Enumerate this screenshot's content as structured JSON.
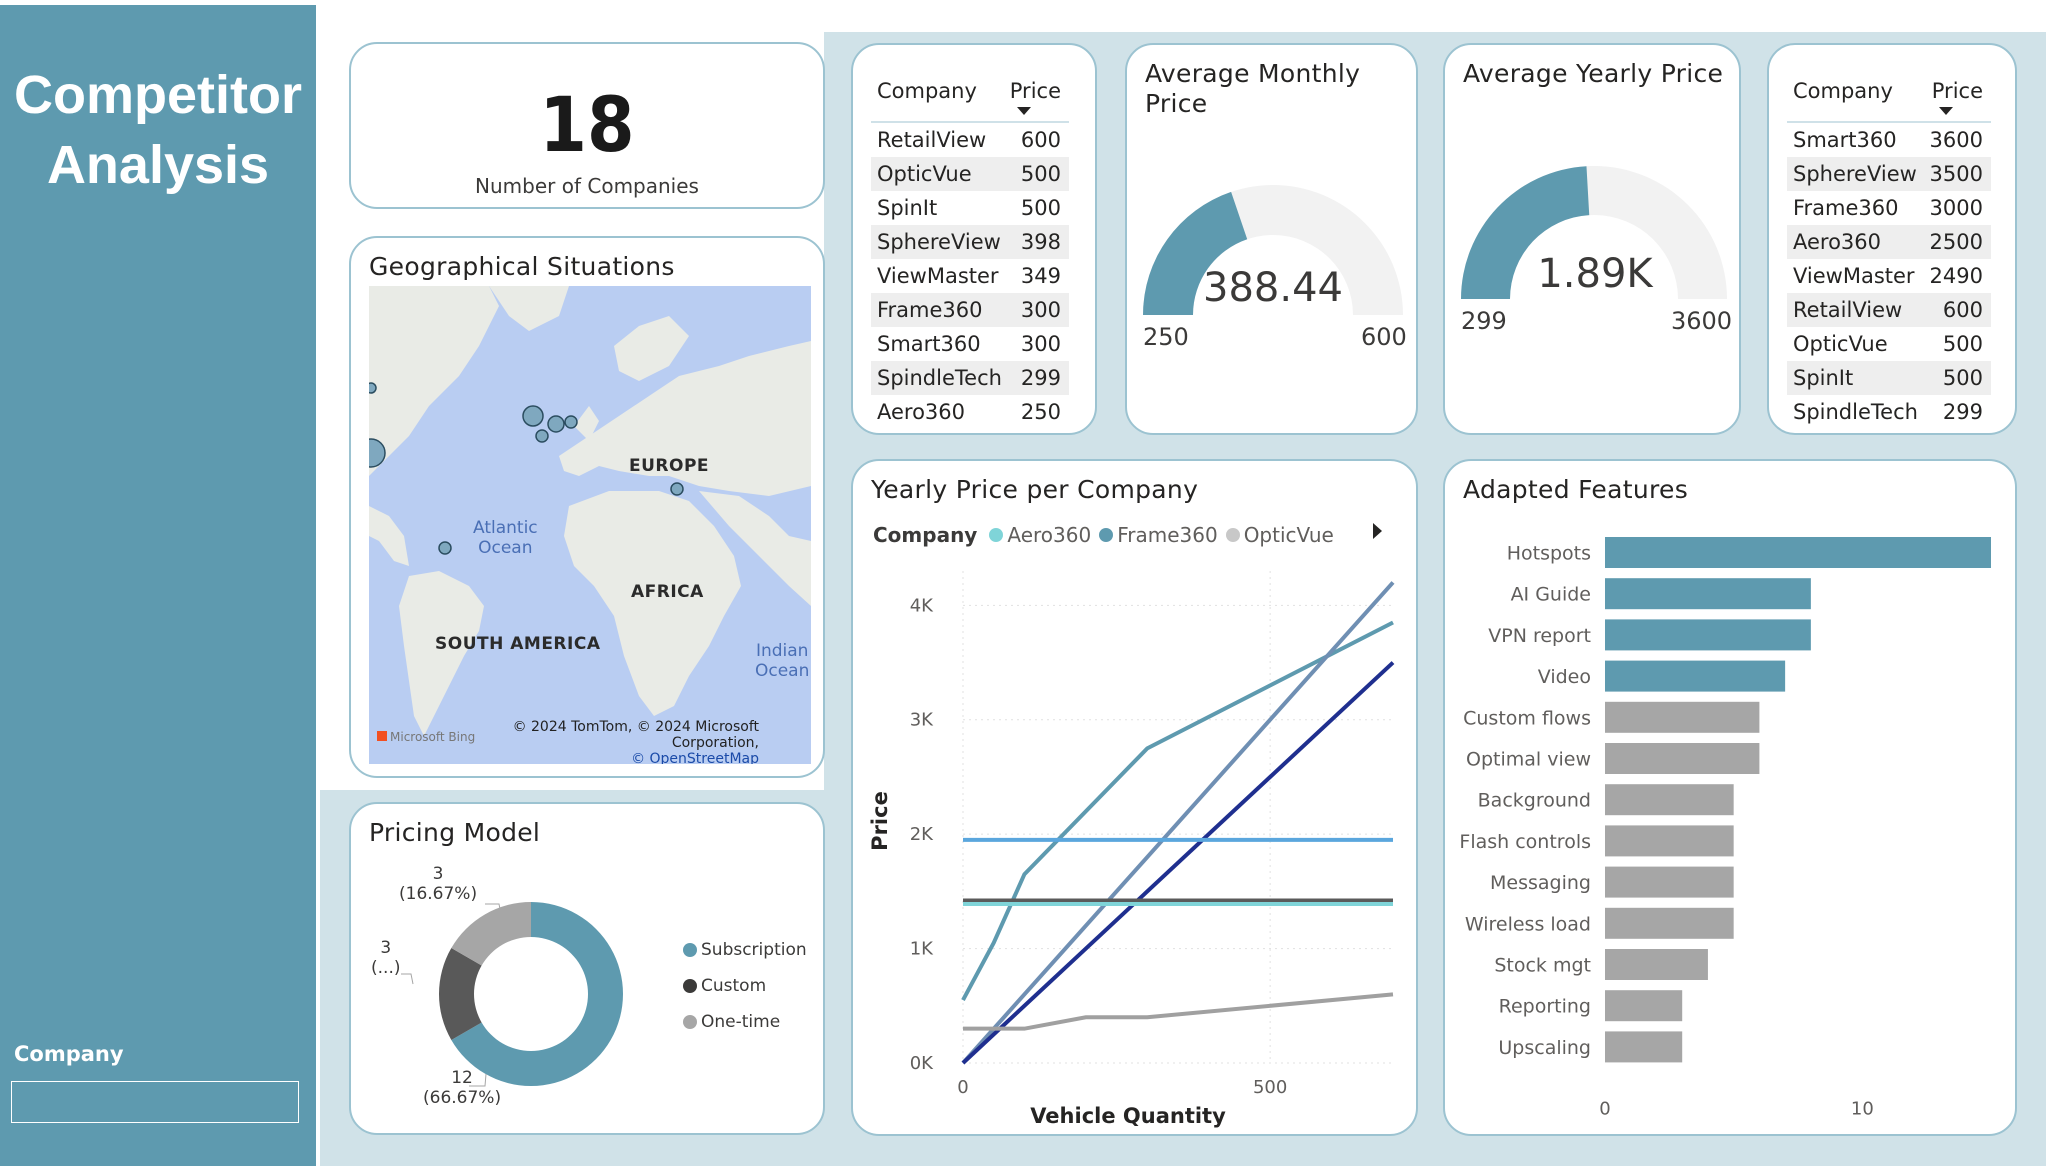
{
  "sidebar": {
    "title_line1": "Competitor",
    "title_line2": "Analysis",
    "slicer_label": "Company",
    "slicer_value": ""
  },
  "colors": {
    "teal": "#5e9aaf",
    "light_panel": "#d0e2e8",
    "gray_bar": "#a6a6a6",
    "gauge_track": "#f2f2f2"
  },
  "kpi": {
    "value": "18",
    "label": "Number of Companies"
  },
  "monthly_table": {
    "col_company": "Company",
    "col_price": "Price",
    "rows": [
      [
        "RetailView",
        "600"
      ],
      [
        "OpticVue",
        "500"
      ],
      [
        "SpinIt",
        "500"
      ],
      [
        "SphereView",
        "398"
      ],
      [
        "ViewMaster",
        "349"
      ],
      [
        "Frame360",
        "300"
      ],
      [
        "Smart360",
        "300"
      ],
      [
        "SpindleTech",
        "299"
      ],
      [
        "Aero360",
        "250"
      ]
    ]
  },
  "yearly_table": {
    "col_company": "Company",
    "col_price": "Price",
    "rows": [
      [
        "Smart360",
        "3600"
      ],
      [
        "SphereView",
        "3500"
      ],
      [
        "Frame360",
        "3000"
      ],
      [
        "Aero360",
        "2500"
      ],
      [
        "ViewMaster",
        "2490"
      ],
      [
        "RetailView",
        "600"
      ],
      [
        "OpticVue",
        "500"
      ],
      [
        "SpinIt",
        "500"
      ],
      [
        "SpindleTech",
        "299"
      ]
    ]
  },
  "gauge_monthly": {
    "title_line1": "Average Monthly",
    "title_line2": "Price",
    "value": 388.44,
    "value_label": "388.44",
    "min": 250,
    "max": 600,
    "min_label": "250",
    "max_label": "600"
  },
  "gauge_yearly": {
    "title": "Average Yearly Price",
    "value": 1890,
    "value_label": "1.89K",
    "min": 299,
    "max": 3600,
    "min_label": "299",
    "max_label": "3600"
  },
  "map": {
    "title": "Geographical Situations",
    "labels": {
      "europe": "EUROPE",
      "africa": "AFRICA",
      "south_america": "SOUTH AMERICA"
    },
    "ocean_atlantic_1": "Atlantic",
    "ocean_atlantic_2": "Ocean",
    "ocean_indian_1": "Indian",
    "ocean_indian_2": "Ocean",
    "copyright": "© 2024 TomTom, © 2024 Microsoft Corporation,",
    "osm": "© OpenStreetMap",
    "bing": "Microsoft Bing"
  },
  "pricing_model": {
    "title": "Pricing Model",
    "legend": [
      "Subscription",
      "Custom",
      "One-time"
    ],
    "label_onetime_count": "3",
    "label_onetime_pct": "(16.67%)",
    "label_custom_count": "3",
    "label_custom_pct": "(...)",
    "label_sub_count": "12",
    "label_sub_pct": "(66.67%)"
  },
  "line_chart": {
    "title": "Yearly Price per Company",
    "legend_title": "Company",
    "legend": [
      "Aero360",
      "Frame360",
      "OpticVue"
    ],
    "xlabel": "Vehicle Quantity",
    "ylabel": "Price"
  },
  "chart_data": [
    {
      "type": "pie",
      "title": "Pricing Model",
      "categories": [
        "Subscription",
        "Custom",
        "One-time"
      ],
      "values": [
        12,
        3,
        3
      ],
      "percentages": [
        "66.67%",
        "16.67%",
        "16.67%"
      ],
      "colors": [
        "#5e9aaf",
        "#595959",
        "#a6a6a6"
      ]
    },
    {
      "type": "line",
      "title": "Yearly Price per Company",
      "xlabel": "Vehicle Quantity",
      "ylabel": "Price",
      "xlim": [
        0,
        700
      ],
      "ylim": [
        0,
        4300
      ],
      "x_ticks": [
        "0",
        "500"
      ],
      "y_ticks": [
        "0K",
        "1K",
        "2K",
        "3K",
        "4K"
      ],
      "series": [
        {
          "color": "#5e9aaf",
          "x": [
            0,
            50,
            100,
            300,
            700
          ],
          "y": [
            550,
            1050,
            1650,
            2750,
            3850
          ]
        },
        {
          "color": "#6f8fb3",
          "x": [
            0,
            700
          ],
          "y": [
            0,
            4200
          ]
        },
        {
          "color": "#1f2f8f",
          "x": [
            0,
            700
          ],
          "y": [
            0,
            3500
          ]
        },
        {
          "color": "#5aa6dd",
          "x": [
            0,
            700
          ],
          "y": [
            1950,
            1950
          ]
        },
        {
          "color": "#5a5a5a",
          "x": [
            0,
            700
          ],
          "y": [
            1420,
            1420
          ]
        },
        {
          "color": "#7fd4d8",
          "x": [
            0,
            700
          ],
          "y": [
            1390,
            1390
          ]
        },
        {
          "color": "#a0a0a0",
          "x": [
            0,
            100,
            200,
            300,
            700
          ],
          "y": [
            300,
            300,
            400,
            400,
            600
          ]
        }
      ]
    },
    {
      "type": "bar",
      "title": "Adapted Features",
      "orientation": "horizontal",
      "categories": [
        "Hotspots",
        "AI Guide",
        "VPN report",
        "Video",
        "Custom flows",
        "Optimal view",
        "Background",
        "Flash controls",
        "Messaging",
        "Wireless load",
        "Stock mgt",
        "Reporting",
        "Upscaling"
      ],
      "values": [
        15,
        8,
        8,
        7,
        6,
        6,
        5,
        5,
        5,
        5,
        4,
        3,
        3
      ],
      "highlighted": [
        true,
        true,
        true,
        true,
        false,
        false,
        false,
        false,
        false,
        false,
        false,
        false,
        false
      ],
      "xlim": [
        0,
        15
      ],
      "x_ticks": [
        "0",
        "10"
      ]
    }
  ],
  "features_title": "Adapted Features"
}
